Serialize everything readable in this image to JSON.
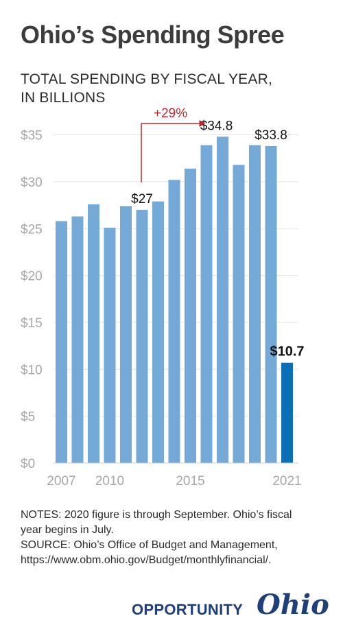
{
  "chart_data": {
    "type": "bar",
    "title": "Ohio’s Spending Spree",
    "subtitle_line1": "TOTAL SPENDING BY FISCAL YEAR,",
    "subtitle_line2": "IN BILLIONS",
    "categories": [
      "2007",
      "2008",
      "2009",
      "2010",
      "2011",
      "2012",
      "2013",
      "2014",
      "2015",
      "2016",
      "2017",
      "2018",
      "2019",
      "2020",
      "2021"
    ],
    "values": [
      25.8,
      26.3,
      27.6,
      25.1,
      27.4,
      27.0,
      27.9,
      30.2,
      31.4,
      33.9,
      34.8,
      31.8,
      33.9,
      33.8,
      10.7
    ],
    "x_tick_labels": [
      "2007",
      "2010",
      "2015",
      "2021"
    ],
    "y_tick_labels": [
      "$0",
      "$5",
      "$10",
      "$15",
      "$20",
      "$25",
      "$30",
      "$35"
    ],
    "ylim": [
      0,
      35
    ],
    "grid": true,
    "bar_color": "#74a9d8",
    "highlight_color": "#0b6fb5",
    "annotation_color": "#c0272d",
    "data_labels": [
      {
        "category": "2012",
        "label": "$27"
      },
      {
        "category": "2017",
        "label": "$34.8"
      },
      {
        "category": "2020",
        "label": "$33.8"
      },
      {
        "category": "2021",
        "label": "$10.7"
      }
    ],
    "change_annotation": {
      "from": "2012",
      "to": "2017",
      "label": "+29%"
    }
  },
  "notes": {
    "line1": "NOTES: 2020 figure is through September. Ohio’s fiscal",
    "line2": "year begins in July.",
    "line3": "SOURCE: Ohio’s Office of Budget and Management,",
    "line4": "https://www.obm.ohio.gov/Budget/monthlyfinancial/."
  },
  "logo": {
    "text": "OPPORTUNITY",
    "script": "Ohio"
  }
}
